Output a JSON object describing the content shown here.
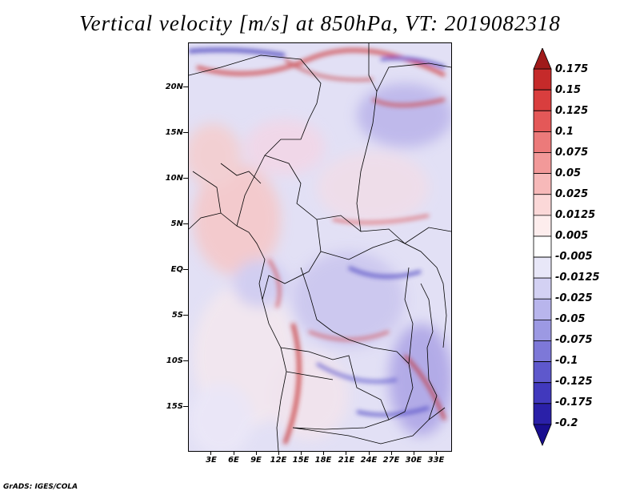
{
  "title": "Vertical velocity [m/s] at 850hPa, VT: 2019082318",
  "latitude_labels": [
    "20N",
    "15N",
    "10N",
    "5N",
    "EQ",
    "5S",
    "10S",
    "15S"
  ],
  "longitude_labels": [
    "3E",
    "6E",
    "9E",
    "12E",
    "15E",
    "18E",
    "21E",
    "24E",
    "27E",
    "30E",
    "33E"
  ],
  "colorbar": {
    "levels": [
      "0.175",
      "0.15",
      "0.125",
      "0.1",
      "0.075",
      "0.05",
      "0.025",
      "0.0125",
      "0.005",
      "-0.005",
      "-0.0125",
      "-0.025",
      "-0.05",
      "-0.075",
      "-0.1",
      "-0.125",
      "-0.175",
      "-0.2"
    ],
    "colors": [
      "#a01a1a",
      "#c52a2a",
      "#d93e3e",
      "#e45858",
      "#ec7a7a",
      "#f29999",
      "#f7b9b9",
      "#fbd8d8",
      "#fdeded",
      "#ffffff",
      "#e8e7f8",
      "#d3d1f3",
      "#b8b5ec",
      "#9c99e3",
      "#7d78d8",
      "#5e58cc",
      "#4139bd",
      "#2a20a8",
      "#190e8f"
    ]
  },
  "footer": "GrADS: IGES/COLA"
}
